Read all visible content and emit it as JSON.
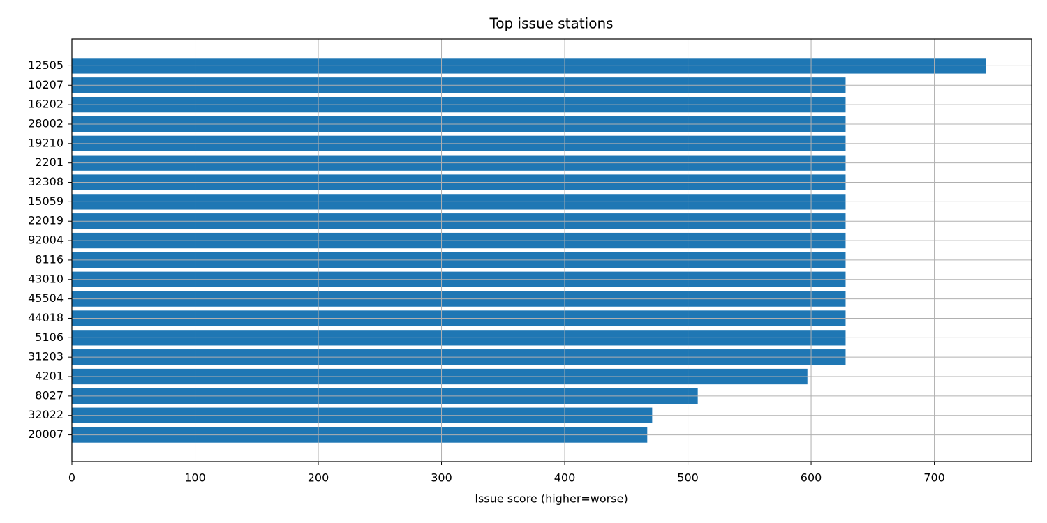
{
  "chart_data": {
    "type": "barh",
    "title": "Top issue stations",
    "xlabel": "Issue score (higher=worse)",
    "categories": [
      "12505",
      "10207",
      "16202",
      "28002",
      "19210",
      "2201",
      "32308",
      "15059",
      "22019",
      "92004",
      "8116",
      "43010",
      "45504",
      "44018",
      "5106",
      "31203",
      "4201",
      "8027",
      "32022",
      "20007"
    ],
    "values": [
      742,
      628,
      628,
      628,
      628,
      628,
      628,
      628,
      628,
      628,
      628,
      628,
      628,
      628,
      628,
      628,
      597,
      508,
      471,
      467
    ],
    "color": "#1f77b4",
    "xlim": [
      0,
      779
    ],
    "xticks": [
      0,
      100,
      200,
      300,
      400,
      500,
      600,
      700
    ],
    "grid": true
  }
}
